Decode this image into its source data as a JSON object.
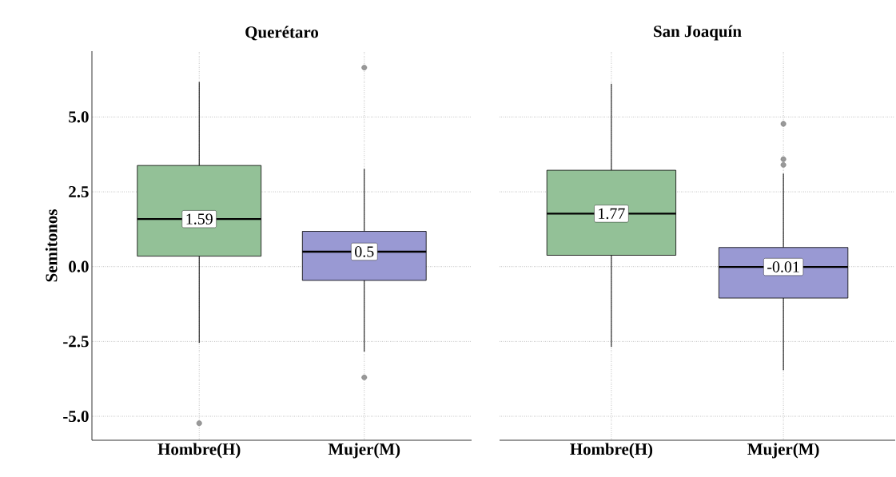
{
  "chart_data": [
    {
      "type": "box",
      "title": "Querétaro",
      "ylabel": "Semitonos",
      "categories": [
        "Hombre(H)",
        "Mujer(M)"
      ],
      "colors": [
        "#93c197",
        "#9999d3"
      ],
      "boxes": [
        {
          "low": -2.55,
          "q1": 0.35,
          "median": 1.59,
          "q3": 3.38,
          "high": 6.17,
          "outliers": [
            -5.23
          ]
        },
        {
          "low": -2.84,
          "q1": -0.46,
          "median": 0.5,
          "q3": 1.18,
          "high": 3.27,
          "outliers": [
            6.65,
            -3.7
          ]
        }
      ],
      "ylim": [
        -5.8,
        7.2
      ],
      "yticks": [
        {
          "value": -5,
          "label": "-5.0"
        },
        {
          "value": -2.5,
          "label": "-2.5"
        },
        {
          "value": 0,
          "label": "0.0"
        },
        {
          "value": 2.5,
          "label": "2.5"
        },
        {
          "value": 5,
          "label": "5.0"
        }
      ],
      "grid": true,
      "annotations": [
        {
          "text": "1.59",
          "y": 1.59
        },
        {
          "text": "0.5",
          "y": 0.5
        }
      ]
    },
    {
      "type": "box",
      "title": "San Joaquín",
      "categories": [
        "Hombre(H)",
        "Mujer(M)"
      ],
      "colors": [
        "#93c197",
        "#9999d3"
      ],
      "boxes": [
        {
          "low": -2.68,
          "q1": 0.38,
          "median": 1.77,
          "q3": 3.22,
          "high": 6.11
        },
        {
          "low": -3.46,
          "q1": -1.05,
          "median": -0.01,
          "q3": 0.64,
          "high": 3.11,
          "outliers": [
            4.77,
            3.59,
            3.4
          ]
        }
      ],
      "ylim": [
        -5.8,
        7.2
      ],
      "yticks": [
        -5,
        -2.5,
        0,
        2.5,
        5
      ],
      "grid": true,
      "annotations": [
        {
          "text": "1.77",
          "y": 1.77
        },
        {
          "text": "-0.01",
          "y": -0.01
        }
      ],
      "tick_labels": "x"
    }
  ]
}
